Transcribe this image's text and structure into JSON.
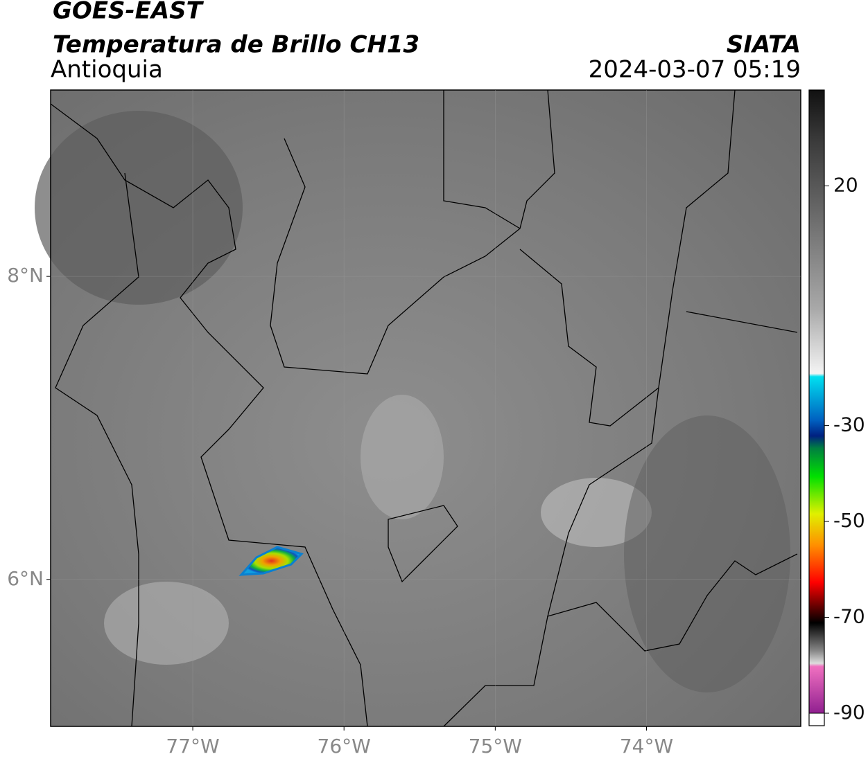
{
  "header": {
    "title": "GOES-EAST",
    "subtitle": "Temperatura de Brillo CH13",
    "region": "Antioquia",
    "source": "SIATA",
    "datetime": "2024-03-07 05:19"
  },
  "map": {
    "xlim": [
      -77.94,
      -72.98
    ],
    "ylim": [
      5.03,
      9.23
    ],
    "xticks": [
      {
        "value": -77,
        "label": "77°W"
      },
      {
        "value": -76,
        "label": "76°W"
      },
      {
        "value": -75,
        "label": "75°W"
      },
      {
        "value": -74,
        "label": "74°W"
      }
    ],
    "yticks": [
      {
        "value": 8,
        "label": "8°N"
      },
      {
        "value": 6,
        "label": "6°N"
      }
    ],
    "grid": true
  },
  "colorbar": {
    "lim": [
      -90,
      40
    ],
    "ticks": [
      20,
      -30,
      -50,
      -70,
      -90
    ]
  }
}
